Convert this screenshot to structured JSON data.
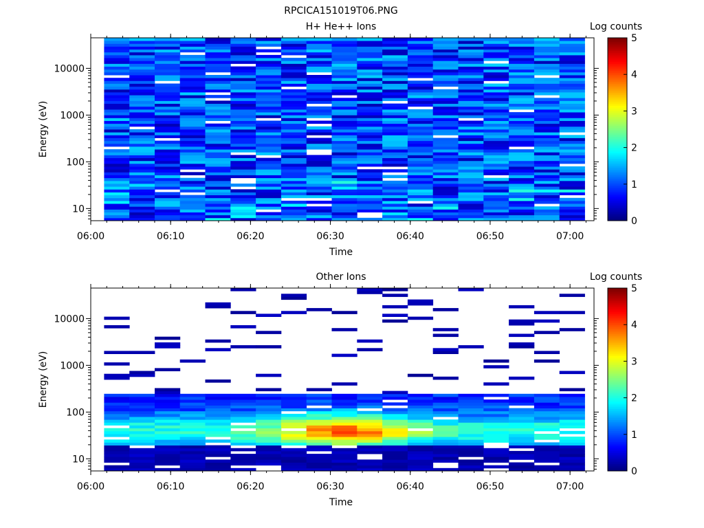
{
  "figure_title": "RPCICA151019T06.PNG",
  "chart_data": [
    {
      "type": "heatmap",
      "title": "H+ He++ Ions",
      "xlabel": "Time",
      "ylabel": "Energy (eV)",
      "x_ticks": [
        "06:00",
        "06:10",
        "06:20",
        "06:30",
        "06:40",
        "06:50",
        "07:00"
      ],
      "y_ticks": [
        "10",
        "100",
        "1000",
        "10000"
      ],
      "y_scale": "log",
      "xlim": [
        "06:00",
        "07:03"
      ],
      "ylim": [
        5.5,
        45000
      ],
      "colorbar": {
        "label": "Log counts",
        "ticks": [
          "0",
          "1",
          "2",
          "3",
          "4",
          "5"
        ],
        "range": [
          0,
          5
        ]
      },
      "columns": [
        {
          "t0": "06:01:40",
          "t1": "06:04:50"
        },
        {
          "t0": "06:04:50",
          "t1": "06:08:00"
        },
        {
          "t0": "06:08:00",
          "t1": "06:11:10"
        },
        {
          "t0": "06:11:10",
          "t1": "06:14:20"
        },
        {
          "t0": "06:14:20",
          "t1": "06:17:30"
        },
        {
          "t0": "06:17:30",
          "t1": "06:20:40"
        },
        {
          "t0": "06:20:40",
          "t1": "06:23:50"
        },
        {
          "t0": "06:23:50",
          "t1": "06:27:00"
        },
        {
          "t0": "06:27:00",
          "t1": "06:30:10"
        },
        {
          "t0": "06:30:10",
          "t1": "06:33:20"
        },
        {
          "t0": "06:33:20",
          "t1": "06:36:30"
        },
        {
          "t0": "06:36:30",
          "t1": "06:39:40"
        },
        {
          "t0": "06:39:40",
          "t1": "06:42:50"
        },
        {
          "t0": "06:42:50",
          "t1": "06:46:00"
        },
        {
          "t0": "06:46:00",
          "t1": "06:49:10"
        },
        {
          "t0": "06:49:10",
          "t1": "06:52:20"
        },
        {
          "t0": "06:52:20",
          "t1": "06:55:30"
        },
        {
          "t0": "06:55:30",
          "t1": "06:58:40"
        },
        {
          "t0": "06:58:40",
          "t1": "07:01:50"
        }
      ],
      "energy_range_eV": [
        5.5,
        45000
      ],
      "energy_bins": 64,
      "typical_log_counts": "0-1 across all energies, sporadic empty bins"
    },
    {
      "type": "heatmap",
      "title": "Other Ions",
      "xlabel": "Time",
      "ylabel": "Energy (eV)",
      "x_ticks": [
        "06:00",
        "06:10",
        "06:20",
        "06:30",
        "06:40",
        "06:50",
        "07:00"
      ],
      "y_ticks": [
        "10",
        "100",
        "1000",
        "10000"
      ],
      "y_scale": "log",
      "xlim": [
        "06:00",
        "07:03"
      ],
      "ylim": [
        5.5,
        45000
      ],
      "colorbar": {
        "label": "Log counts",
        "ticks": [
          "0",
          "1",
          "2",
          "3",
          "4",
          "5"
        ],
        "range": [
          0,
          5
        ]
      },
      "energy_range_eV": [
        5.5,
        45000
      ],
      "energy_bins": 64,
      "peak_region": {
        "energy_eV": [
          25,
          60
        ],
        "time": [
          "06:27",
          "06:37"
        ],
        "max_log_counts": 3.8
      },
      "typical_log_counts": "1.5-3 between 20 and 200 eV, sparse 0-0.3 lines above 300 eV"
    }
  ]
}
